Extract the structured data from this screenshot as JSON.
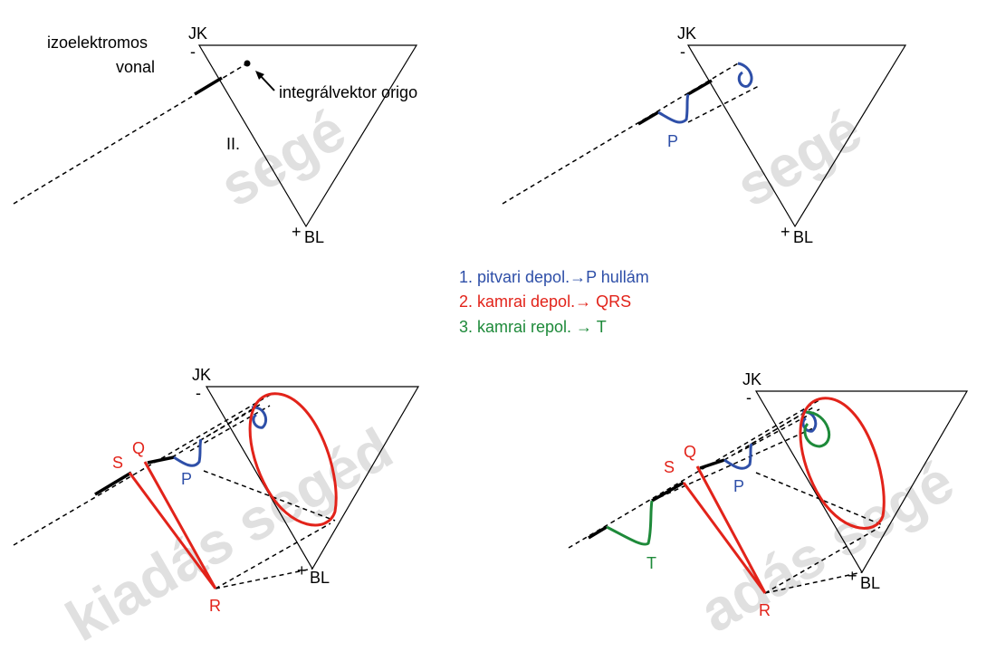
{
  "panels": [
    {
      "jk": "JK",
      "minus": "-",
      "plus": "+",
      "bl": "BL",
      "izo1": "izoelektromos",
      "izo2": "vonal",
      "origo": "integrálvektor origo",
      "lead": "II.",
      "watermark": "segé"
    },
    {
      "jk": "JK",
      "minus": "-",
      "plus": "+",
      "bl": "BL",
      "p": "P",
      "watermark": "segé"
    },
    {
      "jk": "JK",
      "minus": "-",
      "plus": "+",
      "bl": "BL",
      "s": "S",
      "q": "Q",
      "p": "P",
      "r": "R",
      "watermark": "kiadás segéd"
    },
    {
      "jk": "JK",
      "minus": "-",
      "plus": "+",
      "bl": "BL",
      "s": "S",
      "q": "Q",
      "p": "P",
      "t": "T",
      "r": "R",
      "watermark": "adás segé"
    }
  ],
  "legend": [
    "1. pitvari depol.→P hullám",
    "2. kamrai depol.→ QRS",
    "3. kamrai repol. → T"
  ]
}
